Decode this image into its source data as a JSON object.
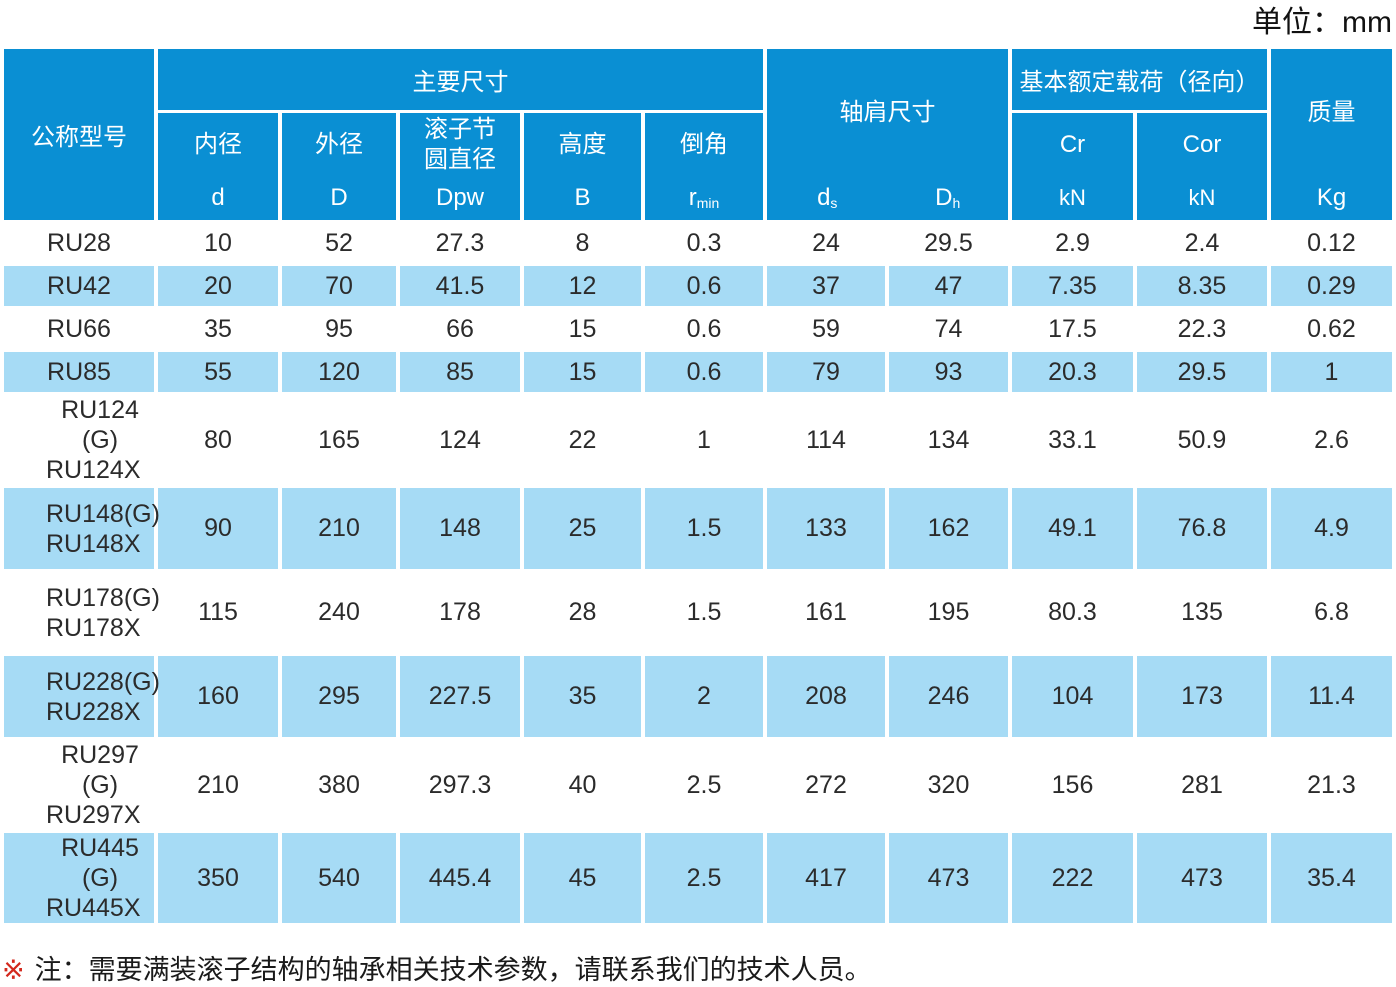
{
  "unit_label": "单位：mm",
  "colors": {
    "header_blue": "#0a8fd3",
    "row_blue": "#a6dbf5",
    "note_red": "#d3281c"
  },
  "table": {
    "header": {
      "model": "公称型号",
      "main_dims": "主要尺寸",
      "shoulder_dims": "轴肩尺寸",
      "load_rating": "基本额定载荷（径向）",
      "mass": "质量",
      "sub": {
        "inner_dia": "内径",
        "inner_sym": "d",
        "outer_dia": "外径",
        "outer_sym": "D",
        "pitch_lines": [
          "滚子节",
          "圆直径"
        ],
        "pitch_sym": "Dpw",
        "height": "高度",
        "height_sym": "B",
        "chamfer": "倒角",
        "chamfer_sym": "r",
        "chamfer_sub": "min",
        "ds_sym": "d",
        "ds_sub": "s",
        "dh_sym": "D",
        "dh_sub": "h",
        "cr": "Cr",
        "cor": "Cor",
        "kn": "kN",
        "kg": "Kg"
      }
    },
    "rows": [
      {
        "model": [
          "RU28"
        ],
        "values": [
          "10",
          "52",
          "27.3",
          "8",
          "0.3",
          "24",
          "29.5",
          "2.9",
          "2.4",
          "0.12"
        ]
      },
      {
        "model": [
          "RU42"
        ],
        "values": [
          "20",
          "70",
          "41.5",
          "12",
          "0.6",
          "37",
          "47",
          "7.35",
          "8.35",
          "0.29"
        ]
      },
      {
        "model": [
          "RU66"
        ],
        "values": [
          "35",
          "95",
          "66",
          "15",
          "0.6",
          "59",
          "74",
          "17.5",
          "22.3",
          "0.62"
        ]
      },
      {
        "model": [
          "RU85"
        ],
        "values": [
          "55",
          "120",
          "85",
          "15",
          "0.6",
          "79",
          "93",
          "20.3",
          "29.5",
          "1"
        ]
      },
      {
        "model": [
          "RU124 (G)",
          "RU124X"
        ],
        "values": [
          "80",
          "165",
          "124",
          "22",
          "1",
          "114",
          "134",
          "33.1",
          "50.9",
          "2.6"
        ]
      },
      {
        "model": [
          "RU148(G)",
          "RU148X"
        ],
        "values": [
          "90",
          "210",
          "148",
          "25",
          "1.5",
          "133",
          "162",
          "49.1",
          "76.8",
          "4.9"
        ]
      },
      {
        "model": [
          "RU178(G)",
          "RU178X"
        ],
        "values": [
          "115",
          "240",
          "178",
          "28",
          "1.5",
          "161",
          "195",
          "80.3",
          "135",
          "6.8"
        ]
      },
      {
        "model": [
          "RU228(G)",
          "RU228X"
        ],
        "values": [
          "160",
          "295",
          "227.5",
          "35",
          "2",
          "208",
          "246",
          "104",
          "173",
          "11.4"
        ]
      },
      {
        "model": [
          "RU297 (G)",
          "RU297X"
        ],
        "values": [
          "210",
          "380",
          "297.3",
          "40",
          "2.5",
          "272",
          "320",
          "156",
          "281",
          "21.3"
        ]
      },
      {
        "model": [
          "RU445 (G)",
          "RU445X"
        ],
        "values": [
          "350",
          "540",
          "445.4",
          "45",
          "2.5",
          "417",
          "473",
          "222",
          "473",
          "35.4"
        ]
      }
    ]
  },
  "note": {
    "marker": "※",
    "text": "注：需要满装滚子结构的轴承相关技术参数，请联系我们的技术人员。"
  }
}
